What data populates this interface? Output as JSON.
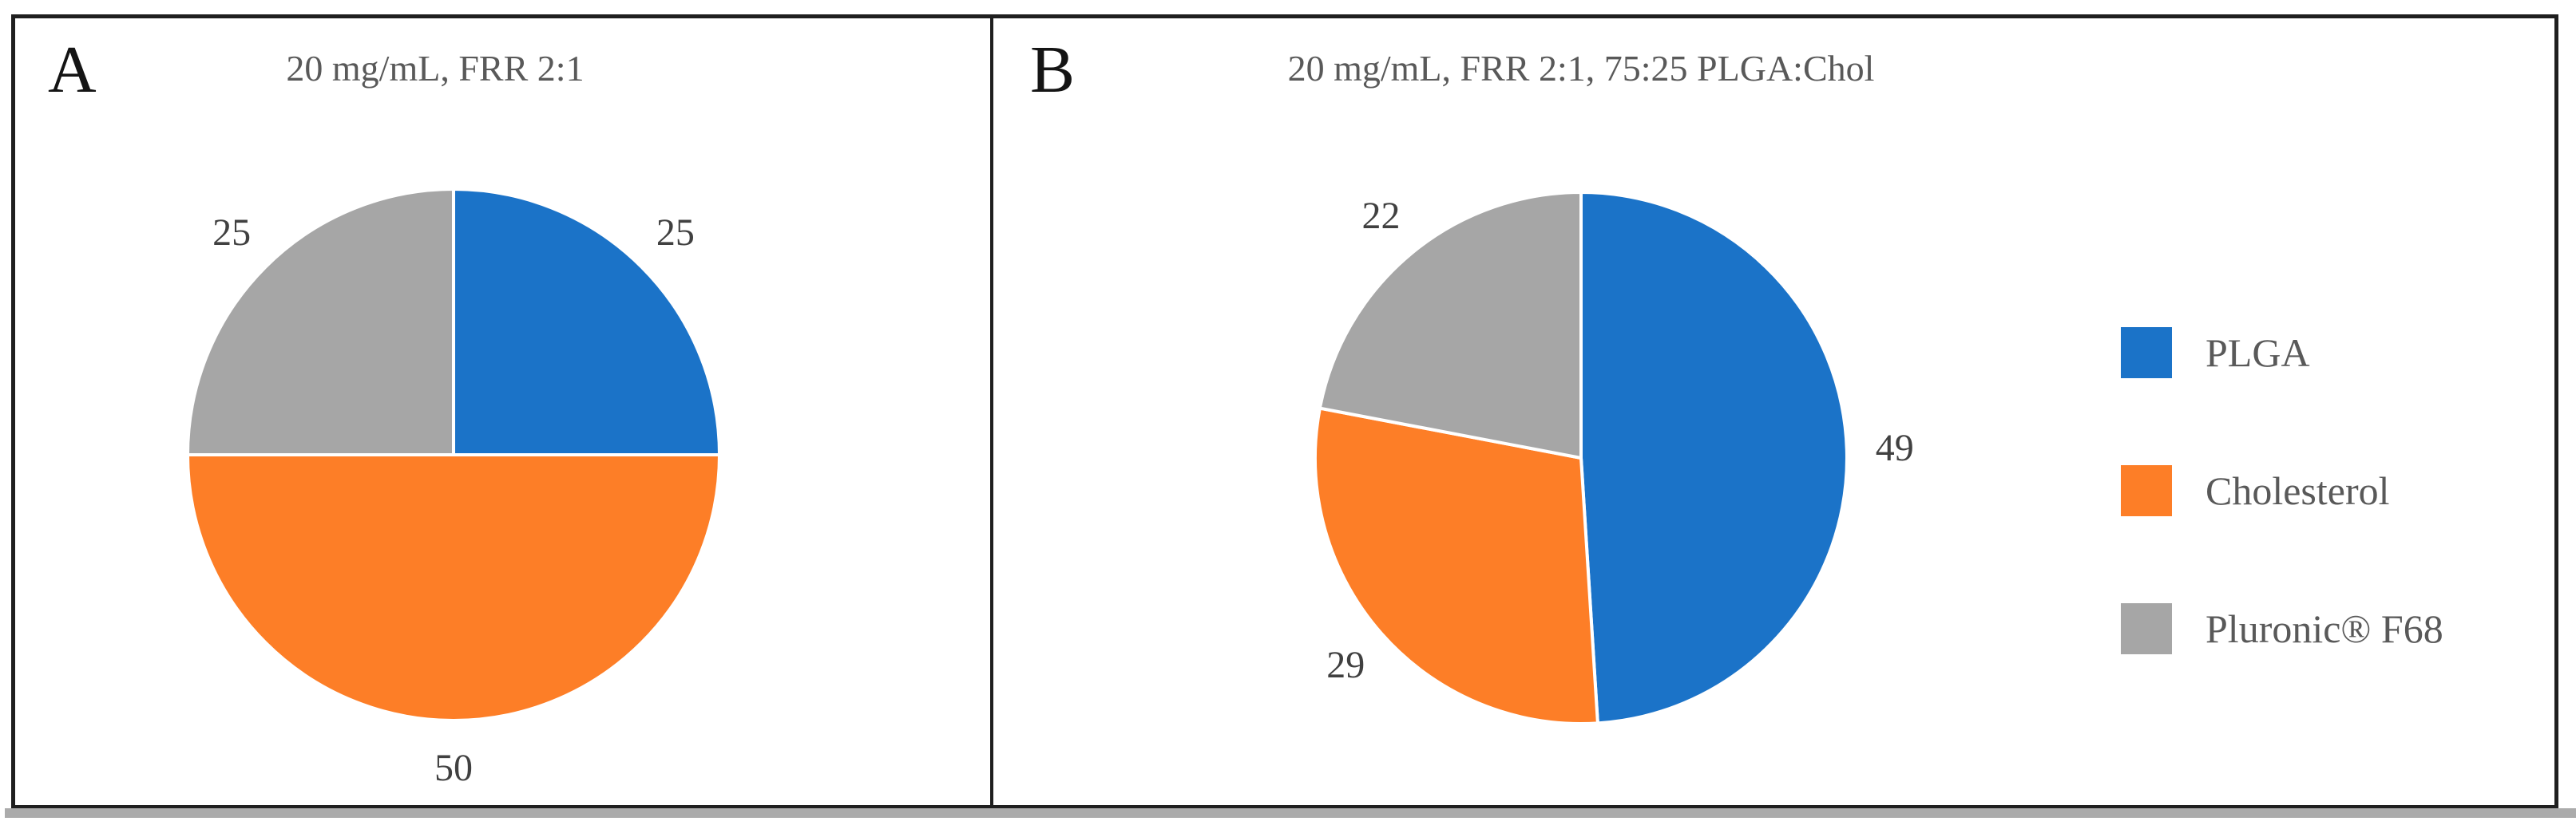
{
  "figure": {
    "panels": [
      {
        "label": "A",
        "title": "20 mg/mL, FRR 2:1"
      },
      {
        "label": "B",
        "title": "20 mg/mL, FRR 2:1, 75:25 PLGA:Chol"
      }
    ]
  },
  "chart_data": [
    {
      "type": "pie",
      "panel": "A",
      "title": "20 mg/mL, FRR 2:1",
      "labels": [
        "PLGA",
        "Cholesterol",
        "Pluronic® F68"
      ],
      "values": [
        25,
        50,
        25
      ],
      "colors": [
        "#1B73C8",
        "#FD7E27",
        "#A6A6A6"
      ],
      "start_angle_deg": 0,
      "direction": "clockwise",
      "data_labels": "outside-end",
      "legend": false
    },
    {
      "type": "pie",
      "panel": "B",
      "title": "20 mg/mL, FRR 2:1, 75:25 PLGA:Chol",
      "labels": [
        "PLGA",
        "Cholesterol",
        "Pluronic® F68"
      ],
      "values": [
        49,
        29,
        22
      ],
      "colors": [
        "#1B73C8",
        "#FD7E27",
        "#A6A6A6"
      ],
      "start_angle_deg": 0,
      "direction": "clockwise",
      "data_labels": "outside-end",
      "legend": true,
      "legend_position": "right"
    }
  ],
  "legend": {
    "items": [
      {
        "label": "PLGA",
        "color": "#1B73C8"
      },
      {
        "label": "Cholesterol",
        "color": "#FD7E27"
      },
      {
        "label": "Pluronic® F68",
        "color": "#A6A6A6"
      }
    ]
  }
}
